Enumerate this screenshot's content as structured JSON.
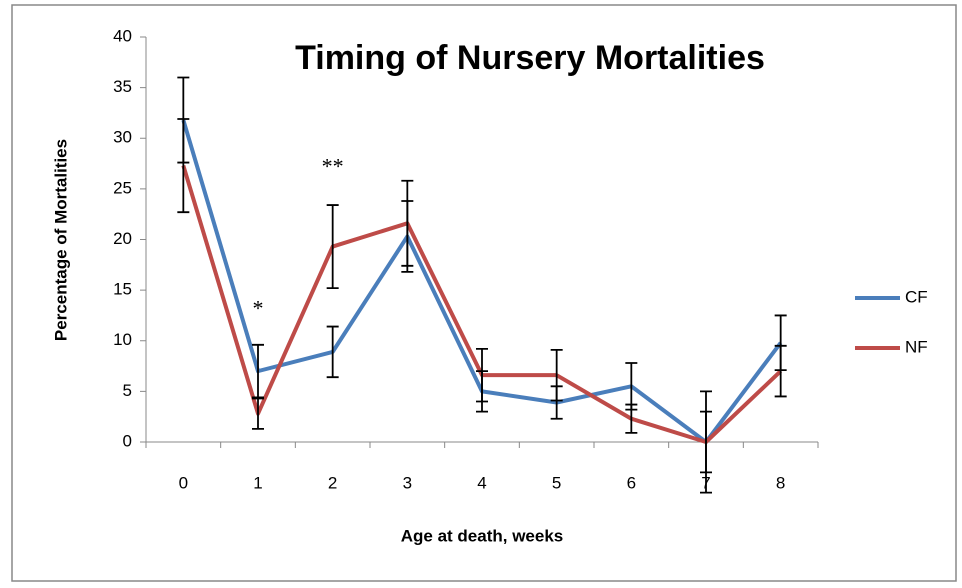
{
  "chart_data": {
    "type": "line",
    "title": "Timing of Nursery Mortalities",
    "x_label": "Age at death, weeks",
    "y_label": "Percentage of Mortalities",
    "categories": [
      "0",
      "1",
      "2",
      "3",
      "4",
      "5",
      "6",
      "7",
      "8"
    ],
    "series": [
      {
        "name": "CF",
        "color": "#4a7ebb",
        "values": [
          31.8,
          7,
          8.9,
          20.3,
          5,
          3.9,
          5.5,
          0,
          9.8
        ],
        "errors": [
          4.2,
          2.6,
          2.5,
          3.5,
          2,
          1.6,
          2.3,
          5,
          2.7
        ]
      },
      {
        "name": "NF",
        "color": "#be4b48",
        "values": [
          27.3,
          2.8,
          19.3,
          21.6,
          6.6,
          6.6,
          2.3,
          0,
          7
        ],
        "errors": [
          4.6,
          1.5,
          4.1,
          4.2,
          2.6,
          2.5,
          1.4,
          3,
          2.5
        ]
      }
    ],
    "annotations": [
      {
        "text": "*",
        "category": 1,
        "y": 13
      },
      {
        "text": "**",
        "category": 2,
        "y": 27
      }
    ],
    "ylim": [
      0,
      40
    ],
    "yticks": [
      0,
      5,
      10,
      15,
      20,
      25,
      30,
      35,
      40
    ],
    "grid": false,
    "legend": "right"
  }
}
